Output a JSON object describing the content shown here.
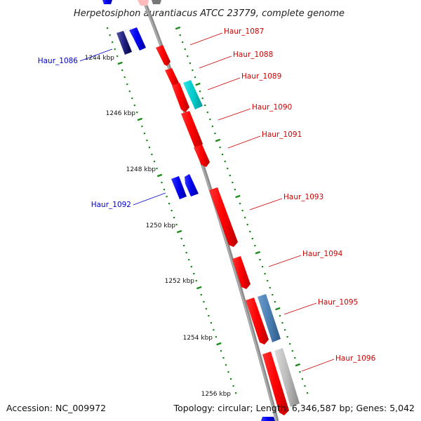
{
  "title": "Herpetosiphon aurantiacus ATCC 23779, complete genome",
  "footer": {
    "accession": "Accession: NC_009972",
    "summary": "Topology: circular; Length: 6,346,587 bp; Genes: 5,042"
  },
  "scale_labels": [
    "1244 kbp",
    "1246 kbp",
    "1248 kbp",
    "1250 kbp",
    "1252 kbp",
    "1254 kbp",
    "1256 kbp"
  ],
  "genes": [
    {
      "name": "Haur_1086",
      "color": "#0000cc"
    },
    {
      "name": "Haur_1087",
      "color": "#cc0000"
    },
    {
      "name": "Haur_1088",
      "color": "#cc0000"
    },
    {
      "name": "Haur_1089",
      "color": "#cc0000"
    },
    {
      "name": "Haur_1090",
      "color": "#cc0000"
    },
    {
      "name": "Haur_1091",
      "color": "#cc0000"
    },
    {
      "name": "Haur_1092",
      "color": "#0000cc"
    },
    {
      "name": "Haur_1093",
      "color": "#cc0000"
    },
    {
      "name": "Haur_1094",
      "color": "#cc0000"
    },
    {
      "name": "Haur_1095",
      "color": "#cc0000"
    },
    {
      "name": "Haur_1096",
      "color": "#cc0000"
    }
  ],
  "colors": {
    "backbone": "#8c8c8c",
    "tick_green": "#1a8a1a",
    "forward_gene": "#ff0000",
    "reverse_gene": "#0000ee",
    "teal_gene": "#00cccc",
    "steelblue_gene": "#4a7fb5",
    "grey_gene": "#bbbbbb"
  }
}
